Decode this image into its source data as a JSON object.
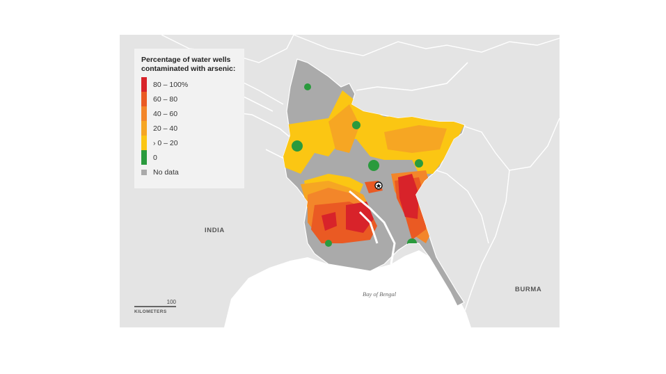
{
  "legend": {
    "title_line1": "Percentage of water wells",
    "title_line2": "contaminated with arsenic:",
    "items": [
      {
        "label": "80 – 100%",
        "color": "#d8232a"
      },
      {
        "label": "60 – 80",
        "color": "#ea5a23"
      },
      {
        "label": "40 – 60",
        "color": "#f3862a"
      },
      {
        "label": "20 – 40",
        "color": "#f6a623"
      },
      {
        "label": "› 0 – 20",
        "color": "#fbc613"
      },
      {
        "label": "0",
        "color": "#2a9a3d"
      },
      {
        "label": "No data",
        "color": "#aaaaaa"
      }
    ]
  },
  "labels": {
    "india": "INDIA",
    "burma": "BURMA",
    "bay": "Bay of Bengal"
  },
  "scale": {
    "value": "100",
    "unit": "KILOMETERS"
  },
  "colors": {
    "land": "#e4e4e4",
    "sea": "#ffffff",
    "no_data": "#aaaaaa",
    "border": "#ffffff"
  },
  "icons": {
    "capital": "capital-star-icon"
  }
}
